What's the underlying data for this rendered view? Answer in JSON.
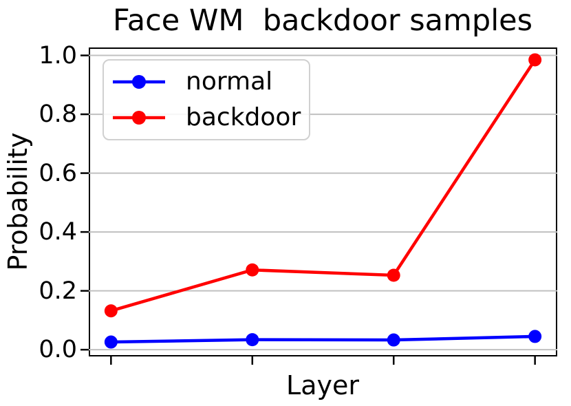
{
  "chart_data": {
    "type": "line",
    "title": "Face WM  backdoor samples",
    "xlabel": "Layer",
    "ylabel": "Probability",
    "x_positions": [
      1,
      2,
      3,
      4
    ],
    "x_tick_labels": [
      "",
      "",
      "",
      ""
    ],
    "yticks": [
      0.0,
      0.2,
      0.4,
      0.6,
      0.8,
      1.0
    ],
    "ytick_labels": [
      "0.0",
      "0.2",
      "0.4",
      "0.6",
      "0.8",
      "1.0"
    ],
    "ylim": [
      -0.023,
      1.027
    ],
    "grid": true,
    "legend_position": "upper left",
    "series": [
      {
        "name": "normal",
        "color": "#0000ff",
        "values": [
          0.026,
          0.034,
          0.033,
          0.045
        ]
      },
      {
        "name": "backdoor",
        "color": "#ff0000",
        "values": [
          0.132,
          0.271,
          0.253,
          0.985
        ]
      }
    ]
  },
  "colors": {
    "grid": "#c0c0c0",
    "spine": "#000000",
    "legend_border": "#d0d0d0",
    "background": "#ffffff"
  }
}
